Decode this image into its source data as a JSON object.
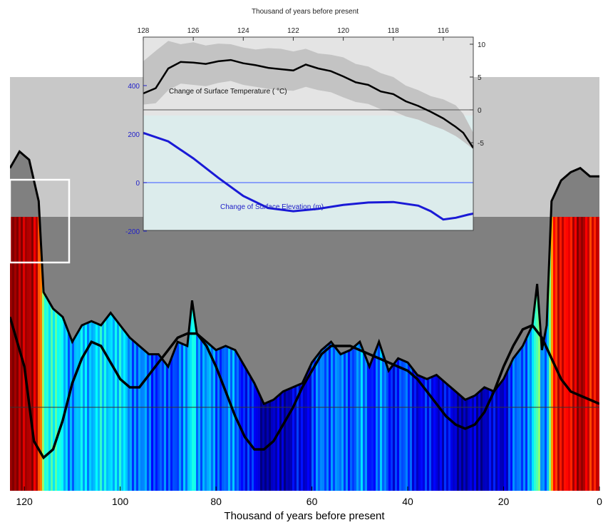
{
  "chart_data": [
    {
      "type": "line",
      "panel": "main",
      "xlabel": "Thousand of years before present",
      "xlim": [
        123,
        0
      ],
      "x_ticks": [
        "120",
        "100",
        "80",
        "60",
        "40",
        "20",
        "0"
      ],
      "x_tick_values": [
        120,
        100,
        80,
        60,
        40,
        20,
        0
      ],
      "background_colormap": "jet (blue = cold, red = warm)",
      "series": [
        {
          "style": "ice-surface profile (black line over gray fill)",
          "x": [
            123,
            121,
            119,
            117,
            116,
            114,
            112,
            110,
            108,
            106,
            104,
            102,
            100,
            98,
            96,
            94,
            92,
            90,
            88,
            86,
            85,
            84,
            82,
            80,
            78,
            76,
            74,
            72,
            70,
            68,
            66,
            64,
            62,
            60,
            58,
            56,
            54,
            52,
            50,
            48,
            46,
            44,
            42,
            40,
            38,
            36,
            34,
            32,
            30,
            28,
            26,
            24,
            22,
            20,
            18,
            16,
            14,
            13,
            12,
            11,
            10,
            8,
            6,
            4,
            2,
            0
          ],
          "y": [
            0.78,
            0.82,
            0.8,
            0.7,
            0.48,
            0.44,
            0.42,
            0.36,
            0.4,
            0.41,
            0.4,
            0.43,
            0.4,
            0.37,
            0.35,
            0.33,
            0.33,
            0.3,
            0.36,
            0.35,
            0.46,
            0.38,
            0.36,
            0.34,
            0.35,
            0.34,
            0.3,
            0.26,
            0.21,
            0.22,
            0.24,
            0.25,
            0.26,
            0.31,
            0.34,
            0.36,
            0.33,
            0.34,
            0.36,
            0.3,
            0.36,
            0.29,
            0.32,
            0.31,
            0.28,
            0.27,
            0.28,
            0.26,
            0.24,
            0.22,
            0.23,
            0.25,
            0.24,
            0.27,
            0.32,
            0.35,
            0.4,
            0.5,
            0.34,
            0.4,
            0.7,
            0.75,
            0.77,
            0.78,
            0.76,
            0.76
          ]
        },
        {
          "style": "smooth black curve",
          "x": [
            123,
            120,
            118,
            116,
            114,
            112,
            110,
            108,
            106,
            104,
            102,
            100,
            98,
            96,
            94,
            92,
            90,
            88,
            86,
            84,
            82,
            80,
            78,
            76,
            74,
            72,
            70,
            68,
            66,
            64,
            62,
            60,
            58,
            56,
            54,
            52,
            50,
            48,
            46,
            44,
            42,
            40,
            38,
            36,
            34,
            32,
            30,
            28,
            26,
            24,
            22,
            20,
            18,
            16,
            14,
            12,
            10,
            8,
            6,
            4,
            2,
            0
          ],
          "y": [
            0.42,
            0.3,
            0.12,
            0.08,
            0.1,
            0.17,
            0.26,
            0.32,
            0.36,
            0.35,
            0.31,
            0.27,
            0.25,
            0.25,
            0.28,
            0.31,
            0.34,
            0.37,
            0.38,
            0.38,
            0.35,
            0.3,
            0.24,
            0.18,
            0.13,
            0.1,
            0.1,
            0.12,
            0.16,
            0.2,
            0.25,
            0.29,
            0.33,
            0.35,
            0.35,
            0.35,
            0.34,
            0.33,
            0.32,
            0.31,
            0.3,
            0.29,
            0.27,
            0.24,
            0.21,
            0.18,
            0.16,
            0.15,
            0.16,
            0.19,
            0.24,
            0.3,
            0.35,
            0.39,
            0.4,
            0.37,
            0.32,
            0.27,
            0.24,
            0.23,
            0.22,
            0.21
          ]
        }
      ]
    },
    {
      "type": "line",
      "panel": "inset-top",
      "title": "Thousand of years before present",
      "annotation": "Change of Surface Temperature ( °C)",
      "xlim": [
        128,
        114.8
      ],
      "x_ticks": [
        "128",
        "126",
        "124",
        "122",
        "120",
        "118",
        "116"
      ],
      "x_tick_values": [
        128,
        126,
        124,
        122,
        120,
        118,
        116
      ],
      "ylim": [
        -6,
        11
      ],
      "y_ticks": [
        "10",
        "5",
        "0",
        "-5"
      ],
      "y_tick_values": [
        10,
        5,
        0,
        -5
      ],
      "zero_line": true,
      "series": [
        {
          "style": "black line with gray uncertainty band",
          "x": [
            128,
            127.5,
            127,
            126.5,
            126,
            125.5,
            125,
            124.5,
            124,
            123.5,
            123,
            122.5,
            122,
            121.5,
            121,
            120.5,
            120,
            119.5,
            119,
            118.5,
            118,
            117.5,
            117,
            116.5,
            116,
            115.5,
            115.2,
            114.8
          ],
          "y": [
            2.5,
            3.3,
            6.3,
            7.3,
            7.2,
            7.0,
            7.4,
            7.6,
            7.1,
            6.8,
            6.4,
            6.2,
            6.0,
            6.9,
            6.3,
            5.9,
            5.1,
            4.2,
            3.8,
            2.8,
            2.4,
            1.3,
            0.6,
            -0.3,
            -1.3,
            -2.6,
            -3.5,
            -5.8
          ],
          "band_upper": [
            7.4,
            9.0,
            10.5,
            10.0,
            10.3,
            9.8,
            10.1,
            10.0,
            9.5,
            9.2,
            9.4,
            9.3,
            8.9,
            9.3,
            8.6,
            8.4,
            8.0,
            7.0,
            6.6,
            5.6,
            5.0,
            3.7,
            3.0,
            2.1,
            1.6,
            0.7,
            -0.6,
            -3.5
          ],
          "band_lower": [
            0.8,
            1.0,
            3.0,
            4.0,
            3.8,
            3.6,
            4.1,
            4.4,
            3.8,
            3.5,
            3.2,
            3.0,
            2.9,
            3.5,
            3.0,
            2.7,
            1.9,
            1.2,
            0.9,
            0.1,
            -0.2,
            -1.0,
            -1.5,
            -2.3,
            -3.0,
            -4.0,
            -4.8,
            -6.0
          ]
        }
      ]
    },
    {
      "type": "line",
      "panel": "inset-bottom",
      "annotation": "Change of Surface Elevation (m)",
      "xlim": [
        128,
        114.8
      ],
      "ylim": [
        -300,
        550
      ],
      "y_ticks": [
        "400",
        "200",
        "0",
        "-200"
      ],
      "y_tick_values": [
        400,
        200,
        0,
        -200
      ],
      "zero_line": true,
      "series": [
        {
          "style": "blue line",
          "x": [
            128,
            127,
            126,
            125,
            124,
            123,
            122,
            121,
            120,
            119,
            118,
            117,
            116.5,
            116,
            115.5,
            115,
            114.8
          ],
          "y": [
            205,
            170,
            100,
            20,
            -55,
            -105,
            -118,
            -108,
            -92,
            -82,
            -80,
            -95,
            -118,
            -152,
            -145,
            -132,
            -128
          ]
        }
      ]
    }
  ]
}
